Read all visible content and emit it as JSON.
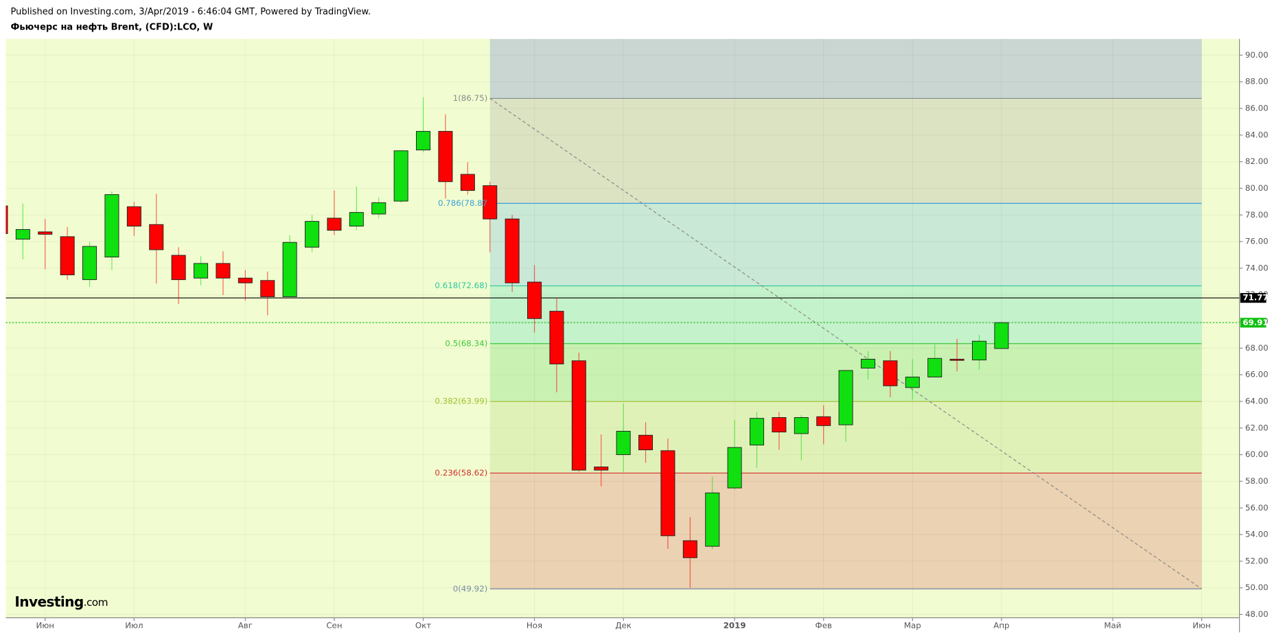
{
  "chart_data": {
    "type": "candlestick",
    "header": "Published on Investing.com, 3/Apr/2019 - 6:46:04 GMT, Powered by TradingView.",
    "title": "Фьючерс на нефть Brent, (CFD):LCO, W",
    "logo": {
      "brand": "Investing",
      "suffix": ".com"
    },
    "x": [
      0,
      1,
      2,
      3,
      4,
      5,
      6,
      7,
      8,
      9,
      10,
      11,
      12,
      13,
      14,
      15,
      16,
      17,
      18,
      19,
      20,
      21,
      22,
      23,
      24,
      25,
      26,
      27,
      28,
      29,
      30,
      31,
      32,
      33,
      34,
      35,
      36,
      37,
      38,
      39,
      40,
      41,
      42,
      43,
      44,
      45
    ],
    "open": [
      78.68,
      76.18,
      76.73,
      76.37,
      73.14,
      74.84,
      78.62,
      77.28,
      74.97,
      73.26,
      74.36,
      73.26,
      73.08,
      71.86,
      75.58,
      77.76,
      77.16,
      78.07,
      79.04,
      82.88,
      84.28,
      81.05,
      80.2,
      77.7,
      72.96,
      70.77,
      67.05,
      59.08,
      60.0,
      61.46,
      60.3,
      53.54,
      53.12,
      57.5,
      60.72,
      62.79,
      61.58,
      62.85,
      62.24,
      66.5,
      67.05,
      65.04,
      65.83,
      67.17,
      67.11,
      67.97
    ],
    "high": [
      79.0,
      78.86,
      77.7,
      77.1,
      76.0,
      79.77,
      78.98,
      79.59,
      75.58,
      74.9,
      75.27,
      73.87,
      73.75,
      76.49,
      78.0,
      79.84,
      80.14,
      79.3,
      82.82,
      86.84,
      85.56,
      81.97,
      80.5,
      78.0,
      74.24,
      71.8,
      67.66,
      61.52,
      63.83,
      62.43,
      61.21,
      55.31,
      58.35,
      62.61,
      63.22,
      63.22,
      62.98,
      63.71,
      66.32,
      67.78,
      67.78,
      67.17,
      68.27,
      68.7,
      69.0,
      69.98
    ],
    "low": [
      76.4,
      74.66,
      73.93,
      73.14,
      72.6,
      73.87,
      76.43,
      72.84,
      71.31,
      72.7,
      71.98,
      71.56,
      70.46,
      71.74,
      75.2,
      76.49,
      76.85,
      77.76,
      78.92,
      82.7,
      79.23,
      79.53,
      75.2,
      72.23,
      69.18,
      64.68,
      58.72,
      57.62,
      58.72,
      59.39,
      52.93,
      50.01,
      52.9,
      57.38,
      59.02,
      60.36,
      59.57,
      60.78,
      60.97,
      65.65,
      64.32,
      64.13,
      65.83,
      66.26,
      66.38,
      67.97
    ],
    "close": [
      76.6,
      76.91,
      76.55,
      73.5,
      75.64,
      79.53,
      77.16,
      75.39,
      73.14,
      74.36,
      73.26,
      72.9,
      71.86,
      75.94,
      77.52,
      76.85,
      78.19,
      78.92,
      82.82,
      84.28,
      80.5,
      79.84,
      77.7,
      72.9,
      70.22,
      66.81,
      58.84,
      58.84,
      61.76,
      60.36,
      53.91,
      52.26,
      57.13,
      60.54,
      62.73,
      61.7,
      62.79,
      62.18,
      66.32,
      67.17,
      65.17,
      65.83,
      67.23,
      67.11,
      68.52,
      69.91
    ],
    "up_color": "#10e010",
    "down_color": "#ff0000",
    "xlim": [
      0.23,
      55.7
    ],
    "xticks": [
      {
        "value": 2,
        "label": "Июн"
      },
      {
        "value": 6,
        "label": "Июл"
      },
      {
        "value": 11,
        "label": "Авг"
      },
      {
        "value": 15,
        "label": "Сен"
      },
      {
        "value": 19,
        "label": "Окт"
      },
      {
        "value": 24,
        "label": "Ноя"
      },
      {
        "value": 28,
        "label": "Дек"
      },
      {
        "value": 33,
        "label": "2019"
      },
      {
        "value": 37,
        "label": "Фев"
      },
      {
        "value": 41,
        "label": "Мар"
      },
      {
        "value": 45,
        "label": "Апр"
      },
      {
        "value": 50,
        "label": "Май"
      },
      {
        "value": 54,
        "label": "Июн"
      }
    ],
    "ylim": [
      47.75,
      91.22
    ],
    "yticks": [
      {
        "value": 48,
        "label": "48.00"
      },
      {
        "value": 50,
        "label": "50.00"
      },
      {
        "value": 52,
        "label": "52.00"
      },
      {
        "value": 54,
        "label": "54.00"
      },
      {
        "value": 56,
        "label": "56.00"
      },
      {
        "value": 58,
        "label": "58.00"
      },
      {
        "value": 60,
        "label": "60.00"
      },
      {
        "value": 62,
        "label": "62.00"
      },
      {
        "value": 64,
        "label": "64.00"
      },
      {
        "value": 66,
        "label": "66.00"
      },
      {
        "value": 68,
        "label": "68.00"
      },
      {
        "value": 70,
        "label": "70.00"
      },
      {
        "value": 72,
        "label": "72.00"
      },
      {
        "value": 74,
        "label": "74.00"
      },
      {
        "value": 76,
        "label": "76.00"
      },
      {
        "value": 78,
        "label": "78.00"
      },
      {
        "value": 80,
        "label": "80.00"
      },
      {
        "value": 82,
        "label": "82.00"
      },
      {
        "value": 84,
        "label": "84.00"
      },
      {
        "value": 86,
        "label": "86.00"
      },
      {
        "value": 88,
        "label": "88.00"
      },
      {
        "value": 90,
        "label": "90.00"
      }
    ],
    "grid": true,
    "fib_range_x": [
      22,
      54
    ],
    "fib_top_fill": "#c9d6d2",
    "fib_levels": [
      {
        "label": "1(86.75)",
        "value": 86.75,
        "color": "#8a8a8a",
        "fill": "#dbe3c3"
      },
      {
        "label": "0.786(78.87",
        "value": 78.87,
        "color": "#3ca0d8",
        "fill": "#c9e8d6"
      },
      {
        "label": "0.618(72.68)",
        "value": 72.68,
        "color": "#2cc8a0",
        "fill": "#c4f2ca"
      },
      {
        "label": "0.5(68.34)",
        "value": 68.34,
        "color": "#3cc83c",
        "fill": "#c9f1b2"
      },
      {
        "label": "0.382(63.99)",
        "value": 63.99,
        "color": "#a0c030",
        "fill": "#e0f1b8"
      },
      {
        "label": "0.236(58.62)",
        "value": 58.62,
        "color": "#d43030",
        "fill": "#ead2b2"
      },
      {
        "label": "0(49.92)",
        "value": 49.92,
        "color": "#7a8aa8"
      }
    ],
    "price_lines": [
      {
        "value": 71.77,
        "color": "#000000",
        "style": "solid"
      },
      {
        "value": 69.91,
        "color": "#10c010",
        "style": "dotted"
      }
    ]
  }
}
